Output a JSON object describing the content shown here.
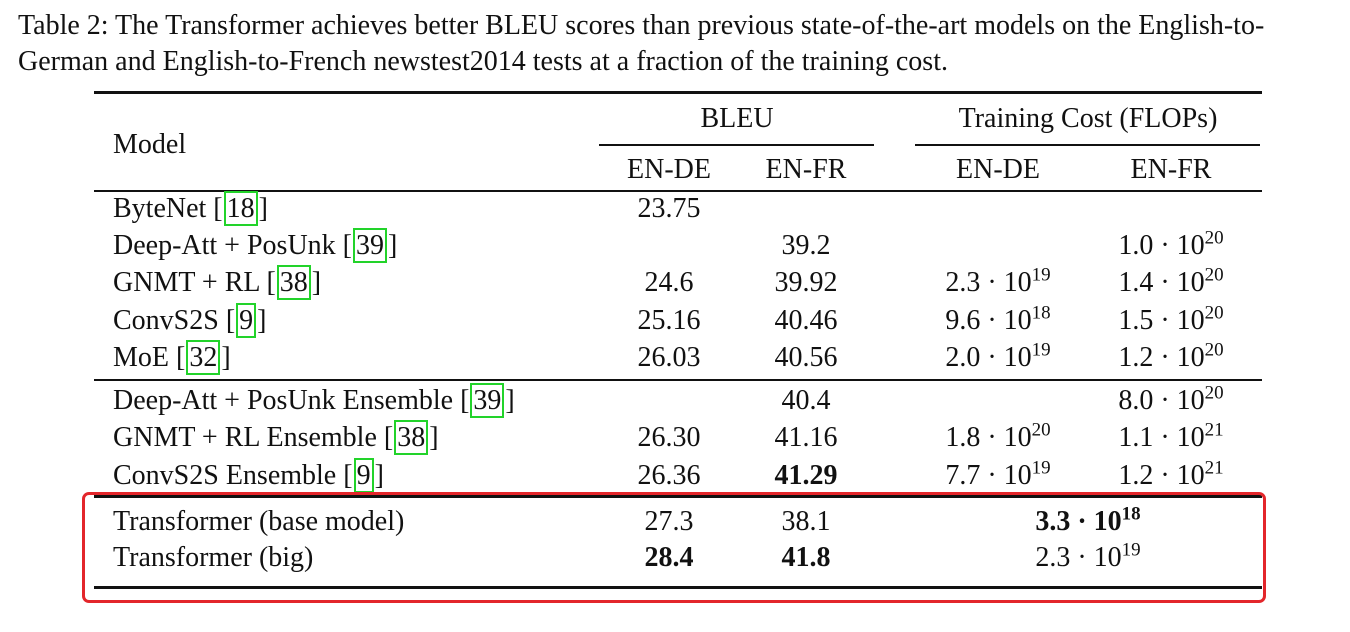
{
  "caption": "Table 2: The Transformer achieves better BLEU scores than previous state-of-the-art models on the English-to-German and English-to-French newstest2014 tests at a fraction of the training cost.",
  "header": {
    "model": "Model",
    "bleu": "BLEU",
    "training_cost": "Training Cost (FLOPs)",
    "en_de": "EN-DE",
    "en_fr": "EN-FR"
  },
  "rows": [
    {
      "name": "ByteNet [",
      "ref": "18",
      "tail": "]",
      "bleu_de": "23.75",
      "bleu_fr": "",
      "cost_de": {
        "m": "",
        "e": ""
      },
      "cost_fr": {
        "m": "",
        "e": ""
      }
    },
    {
      "name": "Deep-Att + PosUnk [",
      "ref": "39",
      "tail": "]",
      "bleu_de": "",
      "bleu_fr": "39.2",
      "cost_de": {
        "m": "",
        "e": ""
      },
      "cost_fr": {
        "m": "1.0 · 10",
        "e": "20"
      }
    },
    {
      "name": "GNMT + RL [",
      "ref": "38",
      "tail": "]",
      "bleu_de": "24.6",
      "bleu_fr": "39.92",
      "cost_de": {
        "m": "2.3 · 10",
        "e": "19"
      },
      "cost_fr": {
        "m": "1.4 · 10",
        "e": "20"
      }
    },
    {
      "name": "ConvS2S [",
      "ref": "9",
      "tail": "]",
      "bleu_de": "25.16",
      "bleu_fr": "40.46",
      "cost_de": {
        "m": "9.6 · 10",
        "e": "18"
      },
      "cost_fr": {
        "m": "1.5 · 10",
        "e": "20"
      }
    },
    {
      "name": "MoE [",
      "ref": "32",
      "tail": "]",
      "bleu_de": "26.03",
      "bleu_fr": "40.56",
      "cost_de": {
        "m": "2.0 · 10",
        "e": "19"
      },
      "cost_fr": {
        "m": "1.2 · 10",
        "e": "20"
      }
    },
    {
      "name": "Deep-Att + PosUnk Ensemble [",
      "ref": "39",
      "tail": "]",
      "bleu_de": "",
      "bleu_fr": "40.4",
      "cost_de": {
        "m": "",
        "e": ""
      },
      "cost_fr": {
        "m": "8.0 · 10",
        "e": "20"
      }
    },
    {
      "name": "GNMT + RL Ensemble [",
      "ref": "38",
      "tail": "]",
      "bleu_de": "26.30",
      "bleu_fr": "41.16",
      "cost_de": {
        "m": "1.8 · 10",
        "e": "20"
      },
      "cost_fr": {
        "m": "1.1 · 10",
        "e": "21"
      }
    },
    {
      "name": "ConvS2S Ensemble [",
      "ref": "9",
      "tail": "]",
      "bleu_de": "26.36",
      "bleu_fr": "41.29",
      "cost_de": {
        "m": "7.7 · 10",
        "e": "19"
      },
      "cost_fr": {
        "m": "1.2 · 10",
        "e": "21"
      }
    },
    {
      "name": "Transformer (base model)",
      "ref": "",
      "tail": "",
      "bleu_de": "27.3",
      "bleu_fr": "38.1",
      "cost_merged": {
        "m": "3.3 · 10",
        "e": "18"
      }
    },
    {
      "name": "Transformer (big)",
      "ref": "",
      "tail": "",
      "bleu_de": "28.4",
      "bleu_fr": "41.8",
      "cost_merged": {
        "m": "2.3 · 10",
        "e": "19"
      }
    }
  ],
  "highlight_color": "#e3262b",
  "ref_box_color": "#22d32a"
}
